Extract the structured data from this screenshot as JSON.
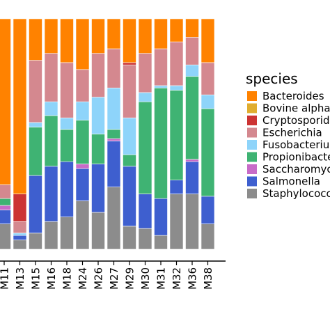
{
  "chart_data": {
    "type": "bar",
    "stacked": true,
    "normalized": true,
    "categories": [
      "M11",
      "M13",
      "M15",
      "M16",
      "M18",
      "M24",
      "M26",
      "M27",
      "M29",
      "M30",
      "M31",
      "M32",
      "M36",
      "M38"
    ],
    "ylim": [
      0,
      1
    ],
    "grid": false,
    "legend": {
      "title": "species",
      "placement": "right"
    },
    "series": [
      {
        "name": "Staphylococcus",
        "color": "#8c8c8c",
        "values": [
          0.11,
          0.04,
          0.07,
          0.12,
          0.14,
          0.21,
          0.16,
          0.27,
          0.1,
          0.09,
          0.06,
          0.24,
          0.24,
          0.11
        ]
      },
      {
        "name": "Salmonella",
        "color": "#3e5fcf",
        "values": [
          0.06,
          0.02,
          0.25,
          0.24,
          0.24,
          0.14,
          0.21,
          0.2,
          0.26,
          0.15,
          0.16,
          0.06,
          0.14,
          0.12
        ]
      },
      {
        "name": "Saccharomyces",
        "color": "#c86bc8",
        "values": [
          0.02,
          0.0,
          0.0,
          0.0,
          0.0,
          0.02,
          0.0,
          0.01,
          0.0,
          0.0,
          0.0,
          0.0,
          0.01,
          0.0
        ]
      },
      {
        "name": "Propionibacterium",
        "color": "#3fb373",
        "values": [
          0.03,
          0.0,
          0.21,
          0.22,
          0.14,
          0.19,
          0.13,
          0.04,
          0.05,
          0.4,
          0.48,
          0.39,
          0.36,
          0.38
        ]
      },
      {
        "name": "Fusobacterium",
        "color": "#8ed4fa",
        "values": [
          0.0,
          0.01,
          0.02,
          0.06,
          0.05,
          0.08,
          0.16,
          0.18,
          0.16,
          0.04,
          0.01,
          0.02,
          0.05,
          0.06
        ]
      },
      {
        "name": "Escherichia",
        "color": "#d4888f",
        "values": [
          0.06,
          0.05,
          0.27,
          0.21,
          0.24,
          0.14,
          0.19,
          0.17,
          0.23,
          0.17,
          0.16,
          0.19,
          0.12,
          0.14
        ]
      },
      {
        "name": "Cryptosporidium",
        "color": "#cc3333",
        "values": [
          0.0,
          0.12,
          0.0,
          0.0,
          0.0,
          0.0,
          0.0,
          0.0,
          0.01,
          0.0,
          0.0,
          0.0,
          0.0,
          0.0
        ]
      },
      {
        "name": "Bovine alphaherpesvirus",
        "color": "#e0ad2f",
        "values": [
          0.0,
          0.0,
          0.0,
          0.0,
          0.0,
          0.0,
          0.0,
          0.0,
          0.0,
          0.0,
          0.0,
          0.0,
          0.0,
          0.0
        ]
      },
      {
        "name": "Bacteroides",
        "color": "#ff8200",
        "values": [
          0.72,
          0.76,
          0.18,
          0.15,
          0.19,
          0.22,
          0.15,
          0.13,
          0.19,
          0.15,
          0.13,
          0.1,
          0.08,
          0.19
        ]
      }
    ]
  },
  "legend_order": [
    "Bacteroides",
    "Bovine alphaherpesvirus",
    "Cryptosporidium",
    "Escherichia",
    "Fusobacterium",
    "Propionibacterium",
    "Saccharomyces",
    "Salmonella",
    "Staphylococcus"
  ]
}
